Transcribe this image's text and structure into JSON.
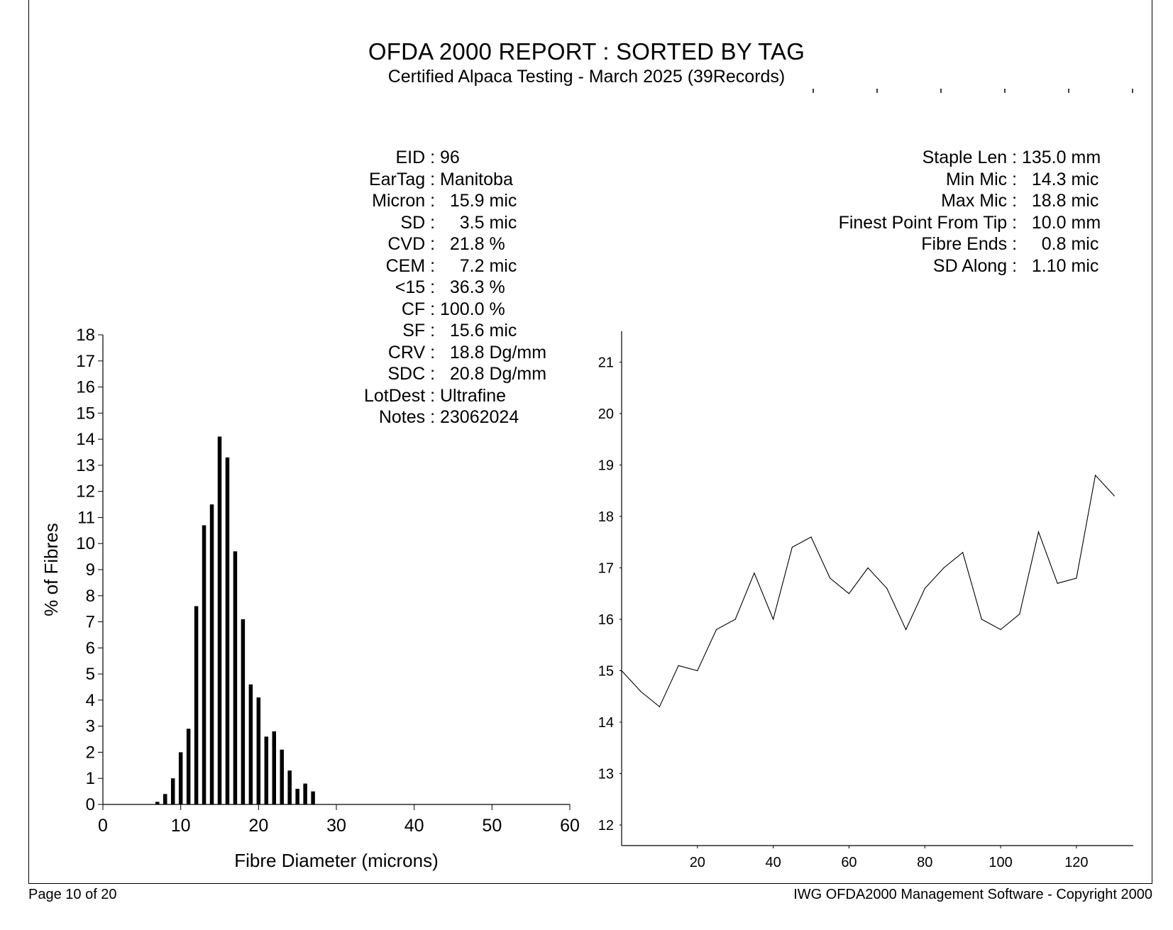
{
  "report": {
    "title": "OFDA 2000 REPORT : SORTED BY TAG",
    "subtitle": "Certified Alpaca Testing - March 2025 (39Records)"
  },
  "stats_left": [
    {
      "label": "EID : ",
      "value": "96"
    },
    {
      "label": "EarTag : ",
      "value": "Manitoba"
    },
    {
      "label": "Micron : ",
      "value": "  15.9 mic"
    },
    {
      "label": "SD : ",
      "value": "    3.5 mic"
    },
    {
      "label": "CVD : ",
      "value": "  21.8 %"
    },
    {
      "label": "CEM : ",
      "value": "    7.2 mic"
    },
    {
      "label": "<15 : ",
      "value": "  36.3 %"
    },
    {
      "label": "CF : ",
      "value": "100.0 %"
    },
    {
      "label": "SF : ",
      "value": "  15.6 mic"
    },
    {
      "label": "CRV : ",
      "value": "  18.8 Dg/mm"
    },
    {
      "label": "SDC : ",
      "value": "  20.8 Dg/mm"
    },
    {
      "label": "LotDest : ",
      "value": "Ultrafine"
    },
    {
      "label": "Notes : ",
      "value": "23062024"
    }
  ],
  "stats_right": [
    {
      "label": "Staple Len : ",
      "value": "135.0 mm"
    },
    {
      "label": "Min Mic : ",
      "value": "  14.3 mic"
    },
    {
      "label": "Max Mic : ",
      "value": "  18.8 mic"
    },
    {
      "label": "Finest Point From Tip : ",
      "value": "  10.0 mm"
    },
    {
      "label": "Fibre Ends : ",
      "value": "    0.8 mic"
    },
    {
      "label": "SD Along : ",
      "value": "  1.10 mic"
    }
  ],
  "footer": {
    "left": "Page 10 of 20",
    "right": "IWG OFDA2000 Management Software - Copyright 2000"
  },
  "chart_data": [
    {
      "type": "bar",
      "xlabel": "Fibre Diameter (microns)",
      "ylabel": "% of Fibres",
      "xlim": [
        0,
        60
      ],
      "ylim": [
        0,
        18
      ],
      "x_ticks": [
        0,
        10,
        20,
        30,
        40,
        50,
        60
      ],
      "y_ticks": [
        0,
        1,
        2,
        3,
        4,
        5,
        6,
        7,
        8,
        9,
        10,
        11,
        12,
        13,
        14,
        15,
        16,
        17,
        18
      ],
      "x": [
        7,
        8,
        9,
        10,
        11,
        12,
        13,
        14,
        15,
        16,
        17,
        18,
        19,
        20,
        21,
        22,
        23,
        24,
        25,
        26,
        27
      ],
      "values": [
        0.1,
        0.4,
        1.0,
        2.0,
        2.9,
        7.6,
        10.7,
        11.5,
        14.1,
        13.3,
        9.7,
        7.1,
        4.6,
        4.1,
        2.6,
        2.8,
        2.1,
        1.3,
        0.6,
        0.8,
        0.5
      ]
    },
    {
      "type": "line",
      "xlim": [
        0,
        135
      ],
      "ylim": [
        11.6,
        21.6
      ],
      "x_ticks": [
        20,
        40,
        60,
        80,
        100,
        120
      ],
      "y_ticks": [
        12,
        13,
        14,
        15,
        16,
        17,
        18,
        19,
        20,
        21
      ],
      "x": [
        0,
        5,
        10,
        15,
        20,
        25,
        30,
        35,
        40,
        45,
        50,
        55,
        60,
        65,
        70,
        75,
        80,
        85,
        90,
        95,
        100,
        105,
        110,
        115,
        120,
        125,
        130
      ],
      "y": [
        15.0,
        14.6,
        14.3,
        15.1,
        15.0,
        15.8,
        16.0,
        16.9,
        16.0,
        17.4,
        17.6,
        16.8,
        16.5,
        17.0,
        16.6,
        15.8,
        16.6,
        17.0,
        17.3,
        16.0,
        15.8,
        16.1,
        17.7,
        16.7,
        16.8,
        18.8,
        18.4
      ]
    }
  ]
}
